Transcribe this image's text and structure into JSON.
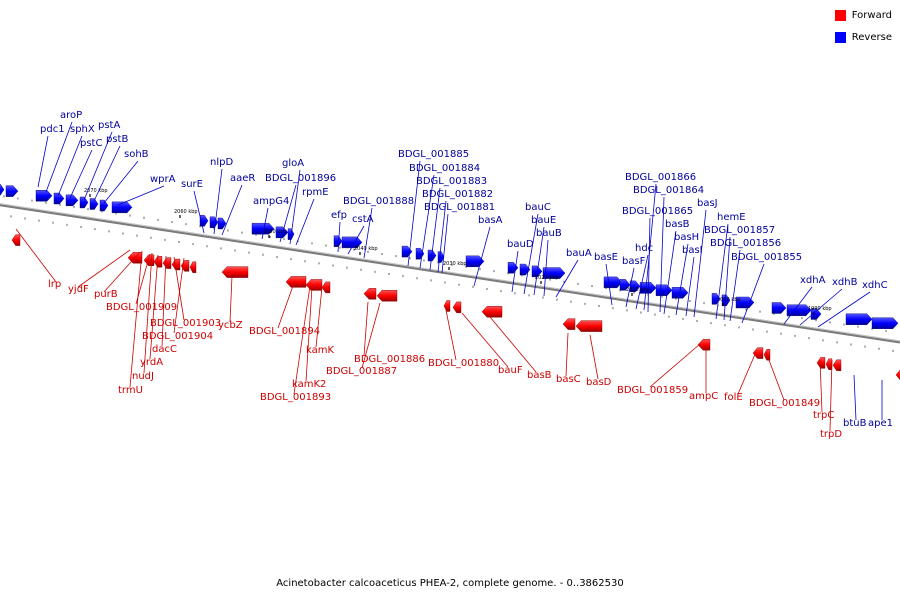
{
  "caption": "Acinetobacter calcoaceticus PHEA-2, complete genome. - 0..3862530",
  "legend": [
    {
      "label": "Forward",
      "color": "#ff0000"
    },
    {
      "label": "Reverse",
      "color": "#0000ff"
    }
  ],
  "colors": {
    "forward_fill": "#ff0000",
    "reverse_fill": "#0000ff",
    "forward_label": "#cc0000",
    "reverse_label": "#000099",
    "backbone": "#808080"
  },
  "ticks": [
    "2070 kbp",
    "2060 kbp",
    "2050 kbp",
    "2040 kbp",
    "2030 kbp",
    "2020 kbp",
    "2010 kbp",
    "2000 kbp",
    "1990 kbp"
  ],
  "reverse_genes": [
    "pdc1",
    "aroP",
    "sphX",
    "pstC",
    "pstA",
    "pstB",
    "sohB",
    "wprA",
    "surE",
    "nlpD",
    "aaeR",
    "ampG4",
    "BDGL_001896",
    "gloA",
    "rpmE",
    "efp",
    "cstA",
    "BDGL_001888",
    "BDGL_001885",
    "BDGL_001884",
    "BDGL_001883",
    "BDGL_001882",
    "BDGL_001881",
    "basA",
    "bauD",
    "bauC",
    "bauE",
    "bauB",
    "bauA",
    "basE",
    "basF",
    "hdc",
    "BDGL_001866",
    "BDGL_001864",
    "BDGL_001865",
    "basB",
    "basH",
    "basI",
    "basJ",
    "hemE",
    "BDGL_001857",
    "BDGL_001856",
    "BDGL_001855",
    "xdhA",
    "xdhB",
    "xdhC",
    "btuB",
    "ape1"
  ],
  "forward_genes": [
    "lrp",
    "yjdF",
    "purB",
    "BDGL_001909",
    "BDGL_001903",
    "BDGL_001904",
    "dacC",
    "yrdA",
    "nudJ",
    "trmU",
    "ycbZ",
    "BDGL_001894",
    "kamK",
    "kamK2",
    "BDGL_001893",
    "BDGL_001886",
    "BDGL_001887",
    "BDGL_001880",
    "bauF",
    "basB",
    "basC",
    "basD",
    "BDGL_001859",
    "ampC",
    "folE",
    "BDGL_001849",
    "trpC",
    "trpD"
  ]
}
